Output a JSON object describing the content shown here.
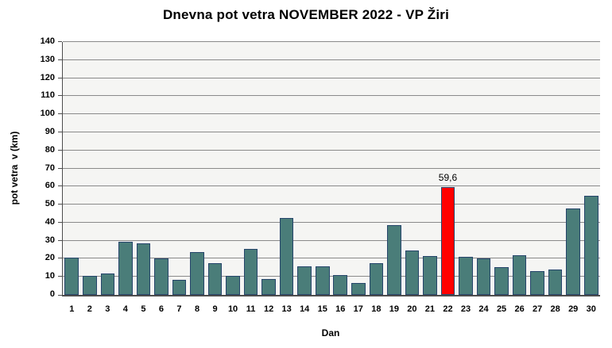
{
  "chart_data": {
    "type": "bar",
    "title": "Dnevna pot vetra NOVEMBER 2022 - VP Žiri",
    "xlabel": "Dan",
    "ylabel": "pot vetra  v (km)",
    "categories": [
      "1",
      "2",
      "3",
      "4",
      "5",
      "6",
      "7",
      "8",
      "9",
      "10",
      "11",
      "12",
      "13",
      "14",
      "15",
      "16",
      "17",
      "18",
      "19",
      "20",
      "21",
      "22",
      "23",
      "24",
      "25",
      "26",
      "27",
      "28",
      "29",
      "30"
    ],
    "values": [
      20.5,
      10.5,
      12,
      29.5,
      28.5,
      20,
      8.5,
      23.5,
      17.5,
      10.5,
      25.5,
      9,
      42.5,
      16,
      16,
      11,
      6.5,
      17.5,
      38.5,
      24.5,
      21.5,
      59.6,
      21,
      20,
      15.5,
      22,
      13,
      14,
      48,
      55
    ],
    "ylim": [
      0,
      140
    ],
    "ytick_step": 10,
    "grid": true,
    "legend": "none",
    "highlight": {
      "category": "22",
      "value": 59.6,
      "label": "59,6"
    },
    "colors": {
      "bar_fill": "#4a7d79",
      "bar_border": "#26456b",
      "highlight_fill": "#ff0000",
      "plot_background": "#f5f5f3",
      "gridline": "#8a8a8a",
      "axis_line": "#4d4d4d",
      "text": "#000000"
    }
  }
}
